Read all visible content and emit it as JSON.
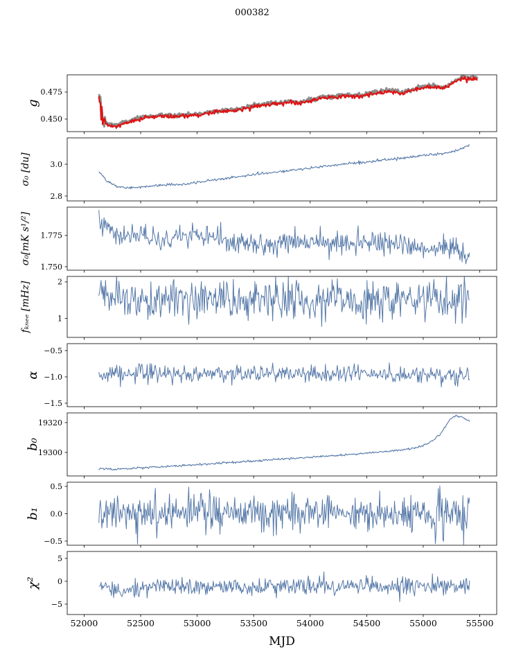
{
  "chart_data": {
    "type": "line",
    "title": "000382",
    "xlabel": "MJD",
    "x_range": [
      51850,
      55650
    ],
    "x_ticks": [
      52000,
      52500,
      53000,
      53500,
      54000,
      54500,
      55000,
      55500
    ],
    "x_tick_labels": [
      "52000",
      "52500",
      "53000",
      "53500",
      "54000",
      "54500",
      "55000",
      "55500"
    ],
    "x_data_range": [
      52130,
      55410
    ],
    "n_points": 500,
    "grid": false,
    "legend": "none",
    "panels": [
      {
        "id": "g",
        "label": "g",
        "ylim": [
          0.4384,
          0.491
        ],
        "yticks": [
          0.45,
          0.475
        ],
        "ytick_labels": [
          "0.450",
          "0.475"
        ],
        "series": [
          {
            "name": "reference-gain",
            "color": "#8c8c8c",
            "width": 3.0,
            "noise": 0.0009,
            "offset": 0.0012,
            "x_end": 55480,
            "noise_segments": [
              [
                52130,
                52185,
                0.004
              ]
            ],
            "trend": [
              [
                52130,
                0.4745
              ],
              [
                52150,
                0.456
              ],
              [
                52165,
                0.449
              ],
              [
                52200,
                0.4448
              ],
              [
                52280,
                0.4435
              ],
              [
                52400,
                0.4475
              ],
              [
                52550,
                0.4515
              ],
              [
                52700,
                0.4525
              ],
              [
                52900,
                0.453
              ],
              [
                53000,
                0.4535
              ],
              [
                53100,
                0.4555
              ],
              [
                53200,
                0.457
              ],
              [
                53300,
                0.4575
              ],
              [
                53400,
                0.459
              ],
              [
                53500,
                0.462
              ],
              [
                53600,
                0.463
              ],
              [
                53700,
                0.464
              ],
              [
                53800,
                0.4655
              ],
              [
                53900,
                0.4645
              ],
              [
                54000,
                0.4665
              ],
              [
                54100,
                0.4695
              ],
              [
                54200,
                0.47
              ],
              [
                54300,
                0.4715
              ],
              [
                54400,
                0.4705
              ],
              [
                54500,
                0.472
              ],
              [
                54600,
                0.4745
              ],
              [
                54700,
                0.4755
              ],
              [
                54800,
                0.4738
              ],
              [
                54900,
                0.4765
              ],
              [
                55000,
                0.479
              ],
              [
                55100,
                0.48
              ],
              [
                55150,
                0.478
              ],
              [
                55200,
                0.479
              ],
              [
                55250,
                0.482
              ],
              [
                55300,
                0.486
              ],
              [
                55350,
                0.488
              ],
              [
                55400,
                0.4872
              ],
              [
                55440,
                0.4878
              ],
              [
                55480,
                0.4862
              ]
            ]
          },
          {
            "name": "fitted-gain",
            "color": "#dd1515",
            "width": 2.2,
            "noise": 0.0009,
            "offset": 0,
            "x_end": 55480,
            "noise_segments": [
              [
                52130,
                52185,
                0.006
              ]
            ]
          }
        ]
      },
      {
        "id": "sigma0-du",
        "label": "σ₀ [du]",
        "ylim": [
          2.7695,
          3.1655
        ],
        "yticks": [
          2.8,
          3.0
        ],
        "ytick_labels": [
          "2.8",
          "3.0"
        ],
        "series": [
          {
            "name": "sigma0-du",
            "color": "#5578a8",
            "width": 1.1,
            "noise": 0.004,
            "trend": [
              [
                52130,
                2.955
              ],
              [
                52200,
                2.895
              ],
              [
                52300,
                2.856
              ],
              [
                52400,
                2.852
              ],
              [
                52500,
                2.858
              ],
              [
                52700,
                2.868
              ],
              [
                52900,
                2.876
              ],
              [
                53100,
                2.895
              ],
              [
                53300,
                2.915
              ],
              [
                53500,
                2.935
              ],
              [
                53700,
                2.952
              ],
              [
                53900,
                2.966
              ],
              [
                54100,
                2.985
              ],
              [
                54300,
                3.0
              ],
              [
                54500,
                3.015
              ],
              [
                54700,
                3.03
              ],
              [
                54900,
                3.045
              ],
              [
                55000,
                3.055
              ],
              [
                55100,
                3.06
              ],
              [
                55200,
                3.07
              ],
              [
                55300,
                3.085
              ],
              [
                55410,
                3.118
              ]
            ]
          }
        ]
      },
      {
        "id": "sigma0-mks",
        "label": "σ₀[mK s¹/²]",
        "ylim": [
          1.7472,
          1.7977
        ],
        "yticks": [
          1.75,
          1.775
        ],
        "ytick_labels": [
          "1.750",
          "1.775"
        ],
        "series": [
          {
            "name": "sigma0-mks",
            "color": "#5578a8",
            "width": 1.0,
            "noise": 0.0045,
            "trend": [
              [
                52130,
                1.79
              ],
              [
                52200,
                1.78
              ],
              [
                52300,
                1.7735
              ],
              [
                52500,
                1.774
              ],
              [
                52700,
                1.771
              ],
              [
                53000,
                1.7745
              ],
              [
                53300,
                1.77
              ],
              [
                53600,
                1.7685
              ],
              [
                53900,
                1.77
              ],
              [
                54200,
                1.7685
              ],
              [
                54500,
                1.7695
              ],
              [
                54800,
                1.768
              ],
              [
                55000,
                1.7655
              ],
              [
                55100,
                1.763
              ],
              [
                55200,
                1.7655
              ],
              [
                55300,
                1.764
              ],
              [
                55350,
                1.758
              ],
              [
                55410,
                1.76
              ]
            ]
          }
        ]
      },
      {
        "id": "f-knee",
        "label": "fₖₙₑₑ [mHz]",
        "ylim": [
          0.483,
          2.15
        ],
        "yticks": [
          1,
          2
        ],
        "ytick_labels": [
          "1",
          "2"
        ],
        "series": [
          {
            "name": "f-knee",
            "color": "#5578a8",
            "width": 1.0,
            "noise": 0.27,
            "trend": [
              [
                52130,
                1.6
              ],
              [
                52300,
                1.52
              ],
              [
                55410,
                1.5
              ]
            ]
          }
        ]
      },
      {
        "id": "alpha",
        "label": "α",
        "ylim": [
          -1.566,
          -0.368
        ],
        "yticks": [
          -1.5,
          -1.0,
          -0.5
        ],
        "ytick_labels": [
          "−1.5",
          "−1.0",
          "−0.5"
        ],
        "series": [
          {
            "name": "alpha",
            "color": "#5578a8",
            "width": 1.0,
            "noise": 0.08,
            "trend": [
              [
                52130,
                -0.93
              ],
              [
                55410,
                -0.95
              ]
            ]
          }
        ]
      },
      {
        "id": "b0",
        "label": "b₀",
        "ylim": [
          19284.2,
          19326.5
        ],
        "yticks": [
          19300,
          19320
        ],
        "ytick_labels": [
          "19300",
          "19320"
        ],
        "series": [
          {
            "name": "b0",
            "color": "#5578a8",
            "width": 1.1,
            "noise": 0.35,
            "trend": [
              [
                52130,
                19289.5
              ],
              [
                52250,
                19288.6
              ],
              [
                52400,
                19289.2
              ],
              [
                52700,
                19290.5
              ],
              [
                53000,
                19291.8
              ],
              [
                53300,
                19293.2
              ],
              [
                53600,
                19294.8
              ],
              [
                53900,
                19296.2
              ],
              [
                54200,
                19297.8
              ],
              [
                54500,
                19299.5
              ],
              [
                54700,
                19300.8
              ],
              [
                54900,
                19302.5
              ],
              [
                55000,
                19304.5
              ],
              [
                55080,
                19307.5
              ],
              [
                55150,
                19312.5
              ],
              [
                55200,
                19318.0
              ],
              [
                55250,
                19323.0
              ],
              [
                55290,
                19324.5
              ],
              [
                55330,
                19324.0
              ],
              [
                55410,
                19321.0
              ]
            ]
          }
        ]
      },
      {
        "id": "b1",
        "label": "b₁",
        "ylim": [
          -0.576,
          0.576
        ],
        "yticks": [
          -0.5,
          0.0,
          0.5
        ],
        "ytick_labels": [
          "−0.5",
          "0.0",
          "0.5"
        ],
        "series": [
          {
            "name": "b1",
            "color": "#5578a8",
            "width": 1.0,
            "noise": 0.155,
            "noise_segments": [
              [
                55090,
                55180,
                0.33
              ],
              [
                55230,
                55410,
                0.3
              ]
            ],
            "trend": [
              [
                52130,
                0.02
              ],
              [
                55410,
                0.0
              ]
            ]
          }
        ]
      },
      {
        "id": "chi2",
        "label": "χ²",
        "ylim": [
          -7.27,
          6.52
        ],
        "yticks": [
          -5,
          0,
          5
        ],
        "ytick_labels": [
          "−5",
          "0",
          "5"
        ],
        "series": [
          {
            "name": "chi2",
            "color": "#5578a8",
            "width": 1.0,
            "noise": 1.0,
            "trend": [
              [
                52130,
                -0.7
              ],
              [
                52250,
                -1.9
              ],
              [
                52450,
                -1.9
              ],
              [
                52600,
                -1.2
              ],
              [
                55410,
                -1.0
              ]
            ]
          }
        ]
      }
    ]
  }
}
